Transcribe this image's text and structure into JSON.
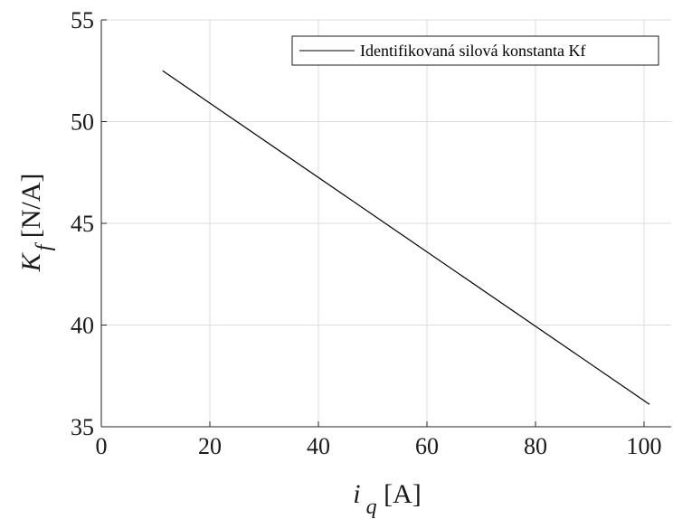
{
  "chart_data": {
    "type": "line",
    "xlabel": {
      "main": "i",
      "sub": "q",
      "unit": " [A]"
    },
    "ylabel": {
      "main": "K",
      "sub": "f",
      "unit": " [N/A]"
    },
    "xlim": [
      0,
      105
    ],
    "ylim": [
      35,
      55
    ],
    "xticks": [
      0,
      20,
      40,
      60,
      80,
      100
    ],
    "yticks": [
      35,
      40,
      45,
      50,
      55
    ],
    "grid": true,
    "legend_position": "top-right",
    "series": [
      {
        "name": "Identifikovaná silová konstanta Kf",
        "color": "#000000",
        "x": [
          11.3,
          101
        ],
        "y": [
          52.5,
          36.1
        ]
      }
    ]
  }
}
